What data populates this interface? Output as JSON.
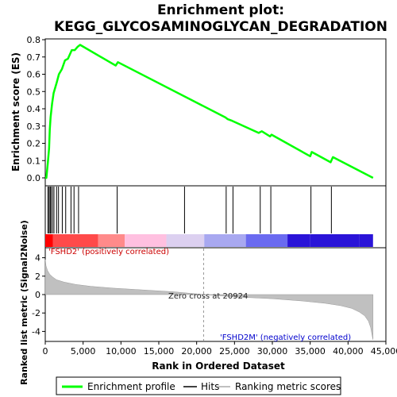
{
  "chart_data": {
    "type": "line",
    "title_line1": "Enrichment plot:",
    "title_line2": "KEGG_GLYCOSAMINOGLYCAN_DEGRADATION",
    "es_panel": {
      "ylabel": "Enrichment score (ES)",
      "ylim": [
        0.0,
        0.8
      ],
      "yticks": [
        "0.0",
        "0.1",
        "0.2",
        "0.3",
        "0.4",
        "0.5",
        "0.6",
        "0.7",
        "0.8"
      ],
      "series": {
        "name": "Enrichment profile",
        "color": "#00ff00",
        "x": [
          0,
          150,
          350,
          500,
          600,
          700,
          900,
          1100,
          1500,
          1800,
          2200,
          2600,
          3000,
          3500,
          3900,
          4300,
          4600,
          9300,
          9600,
          23800,
          24100,
          24700,
          28200,
          28600,
          29700,
          29900,
          35000,
          35200,
          37700,
          38000,
          43300
        ],
        "y": [
          0.0,
          0.0,
          0.09,
          0.17,
          0.28,
          0.35,
          0.43,
          0.49,
          0.55,
          0.6,
          0.63,
          0.68,
          0.69,
          0.74,
          0.74,
          0.76,
          0.77,
          0.65,
          0.67,
          0.35,
          0.34,
          0.33,
          0.26,
          0.27,
          0.24,
          0.25,
          0.125,
          0.15,
          0.09,
          0.12,
          0.0
        ]
      },
      "grid": false
    },
    "hits_panel": {
      "hit_ranks": [
        350,
        500,
        650,
        750,
        950,
        1150,
        1500,
        1750,
        2250,
        2700,
        3400,
        3800,
        4400,
        9500,
        18400,
        23900,
        24800,
        28400,
        29800,
        35100,
        37800
      ]
    },
    "color_bar": {
      "colors": [
        "#ff0000",
        "#ff4a4a",
        "#ff8a8a",
        "#ffc0e0",
        "#dcd0f0",
        "#a8a8f0",
        "#6a6af0",
        "#2a14d8"
      ],
      "breaks": [
        0,
        1000,
        7000,
        10500,
        16000,
        21000,
        26500,
        32000,
        35000,
        41500,
        43300
      ]
    },
    "metric_panel": {
      "ylabel": "Ranked list metric (Signal2Noise)",
      "ylim": [
        -5,
        5
      ],
      "yticks": [
        "-4",
        "-2",
        "0",
        "2",
        "4"
      ],
      "zero_cross_rank": 20924,
      "fill_color": "#c0c0c0",
      "x": [
        0,
        100,
        300,
        600,
        1000,
        1500,
        2500,
        4000,
        6000,
        9000,
        13000,
        17000,
        20924,
        25000,
        30000,
        34000,
        37000,
        39000,
        40500,
        41500,
        42200,
        42700,
        43000,
        43200,
        43300
      ],
      "y": [
        3.8,
        3.1,
        2.6,
        2.2,
        1.9,
        1.6,
        1.35,
        1.1,
        0.9,
        0.7,
        0.5,
        0.3,
        0.0,
        -0.25,
        -0.45,
        -0.7,
        -0.95,
        -1.2,
        -1.5,
        -1.9,
        -2.3,
        -2.9,
        -3.6,
        -4.5,
        -4.9
      ]
    },
    "xlabel": "Rank in Ordered Dataset",
    "xlim": [
      0,
      45000
    ],
    "xticks": [
      "0",
      "5,000",
      "10,000",
      "15,000",
      "20,000",
      "25,000",
      "30,000",
      "35,000",
      "40,000",
      "45,000"
    ],
    "annotations": {
      "positive": "'FSHD2' (positively correlated)",
      "negative": "'FSHD2M' (negatively correlated)",
      "zero_cross": "Zero cross at 20924"
    },
    "legend": {
      "placement": "bottom",
      "items": [
        {
          "label": "Enrichment profile",
          "color": "#00ff00"
        },
        {
          "label": "Hits",
          "color": "#000000"
        },
        {
          "label": "Ranking metric scores",
          "color": "#c0c0c0"
        }
      ]
    }
  }
}
